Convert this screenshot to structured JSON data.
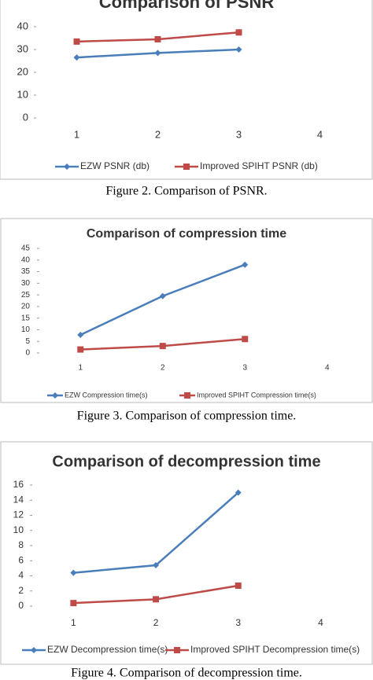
{
  "chart_data": [
    {
      "type": "line",
      "title": "Comparison of PSNR",
      "caption": "Figure 2. Comparison of PSNR.",
      "categories": [
        "1",
        "2",
        "3",
        "4"
      ],
      "series": [
        {
          "name": "EZW PSNR (db)",
          "color": "#4a7ebb",
          "marker": "diamond",
          "values": [
            26.5,
            28.5,
            30,
            null
          ]
        },
        {
          "name": "Improved SPIHT PSNR (db)",
          "color": "#be4b48",
          "marker": "square",
          "values": [
            33.5,
            34.5,
            37.5,
            null
          ]
        }
      ],
      "ylim": [
        0,
        40
      ],
      "yticks": [
        0,
        10,
        20,
        30,
        40
      ],
      "grid": false,
      "legend": "bottom"
    },
    {
      "type": "line",
      "title": "Comparison of compression time",
      "caption": "Figure 3. Comparison of compression time.",
      "categories": [
        "1",
        "2",
        "3",
        "4"
      ],
      "series": [
        {
          "name": "EZW Compression time(s)",
          "color": "#4a7ebb",
          "marker": "diamond",
          "values": [
            7.8,
            24.5,
            38,
            null
          ]
        },
        {
          "name": "Improved SPIHT Compression time(s)",
          "color": "#be4b48",
          "marker": "square",
          "values": [
            1.5,
            3,
            6,
            null
          ]
        }
      ],
      "ylim": [
        0,
        45
      ],
      "yticks": [
        0,
        5,
        10,
        15,
        20,
        25,
        30,
        35,
        40,
        45
      ],
      "grid": false,
      "legend": "bottom"
    },
    {
      "type": "line",
      "title": "Comparison of decompression time",
      "caption": "Figure 4. Comparison of decompression time.",
      "categories": [
        "1",
        "2",
        "3",
        "4"
      ],
      "series": [
        {
          "name": "EZW Decompression time(s)",
          "color": "#4a7ebb",
          "marker": "diamond",
          "values": [
            4.4,
            5.4,
            15,
            null
          ]
        },
        {
          "name": "Improved SPIHT Decompression time(s)",
          "color": "#be4b48",
          "marker": "square",
          "values": [
            0.4,
            0.9,
            2.7,
            null
          ]
        }
      ],
      "ylim": [
        0,
        16
      ],
      "yticks": [
        0,
        2,
        4,
        6,
        8,
        10,
        12,
        14,
        16
      ],
      "grid": false,
      "legend": "bottom"
    }
  ]
}
